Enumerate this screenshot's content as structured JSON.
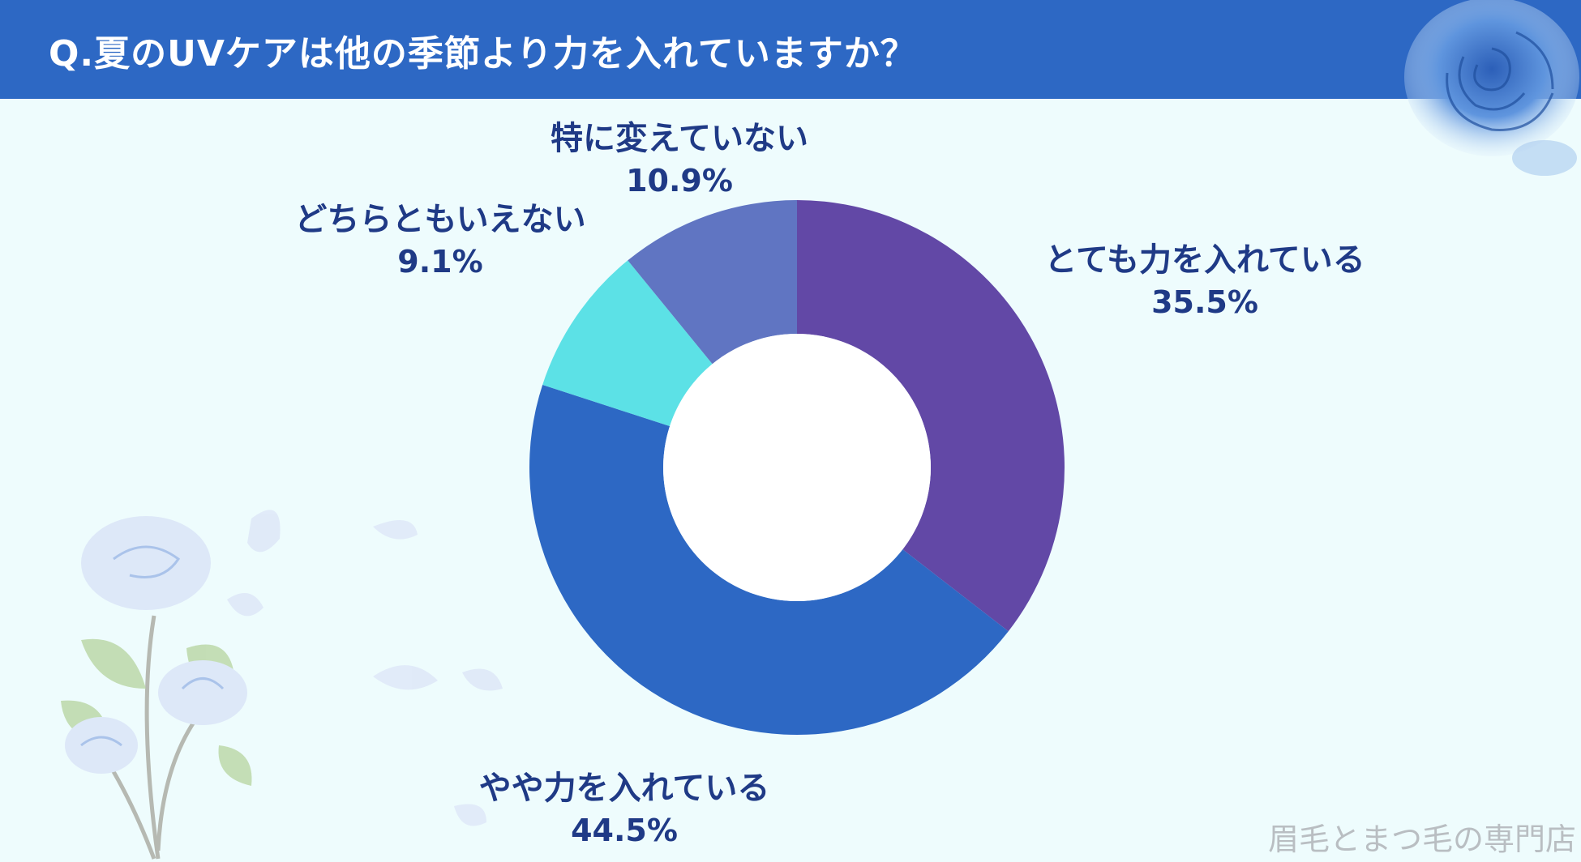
{
  "header": {
    "title": "Q.夏のUVケアは他の季節より力を入れていますか？",
    "bg_color": "#2d68c4"
  },
  "chart_data": {
    "type": "pie",
    "subtype": "donut",
    "slices": [
      {
        "label": "とても力を入れている",
        "value": 35.5,
        "value_label": "35.5%",
        "color": "#6248a6"
      },
      {
        "label": "やや力を入れている",
        "value": 44.5,
        "value_label": "44.5%",
        "color": "#2d68c4"
      },
      {
        "label": "どちらともいえない",
        "value": 9.1,
        "value_label": "9.1%",
        "color": "#5ce1e6"
      },
      {
        "label": "特に変えていない",
        "value": 10.9,
        "value_label": "10.9%",
        "color": "#6075c2"
      }
    ]
  },
  "labels": {
    "l0_cat": "とても力を入れている",
    "l0_val": "35.5%",
    "l1_cat": "やや力を入れている",
    "l1_val": "44.5%",
    "l2_cat": "どちらともいえない",
    "l2_val": "9.1%",
    "l3_cat": "特に変えていない",
    "l3_val": "10.9%"
  },
  "watermark": "眉毛とまつ毛の専門店",
  "icons": {
    "top_right": "blue-rose-icon",
    "bottom_left": "rose-illustration-icon"
  }
}
